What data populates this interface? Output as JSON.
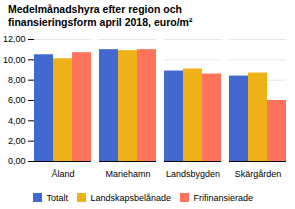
{
  "chart_data": {
    "type": "bar",
    "title": "Medelmånadshyra efter region och\nfinansieringsform april 2018, euro/m²",
    "categories": [
      "Åland",
      "Mariehamn",
      "Landsbygden",
      "Skärgården"
    ],
    "series": [
      {
        "name": "Totalt",
        "values": [
          10.5,
          11.0,
          8.9,
          8.4
        ]
      },
      {
        "name": "Landskapsbelånade",
        "values": [
          10.1,
          10.9,
          9.1,
          8.7
        ]
      },
      {
        "name": "Frifinansierade",
        "values": [
          10.7,
          11.0,
          8.6,
          6.0
        ]
      }
    ],
    "ylim": [
      0,
      12
    ],
    "yticks": [
      {
        "value": 0,
        "label": "0,00"
      },
      {
        "value": 2,
        "label": "2,00"
      },
      {
        "value": 4,
        "label": "4,00"
      },
      {
        "value": 6,
        "label": "6,00"
      },
      {
        "value": 8,
        "label": "8,00"
      },
      {
        "value": 10,
        "label": "10,00"
      },
      {
        "value": 12,
        "label": "12,00"
      }
    ],
    "grid": true,
    "legend": "bottom"
  }
}
